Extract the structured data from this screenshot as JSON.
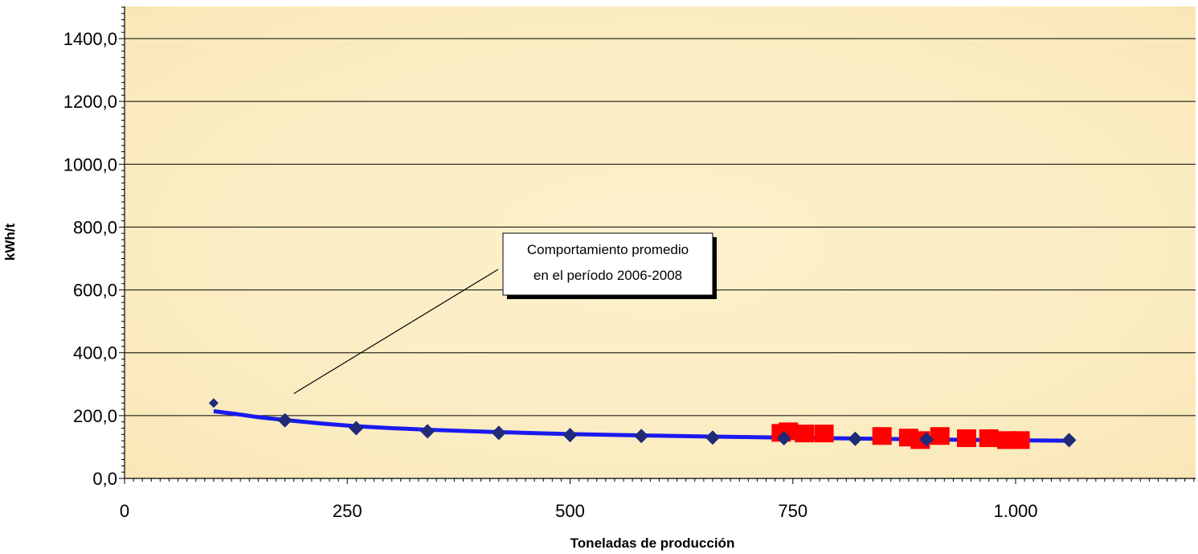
{
  "chart_data": {
    "type": "scatter",
    "title": "",
    "xlabel": "Toneladas de producción",
    "ylabel": "kWh/t",
    "xlim": [
      0,
      1200
    ],
    "ylim": [
      0,
      1500
    ],
    "x_ticks": [
      {
        "value": 0,
        "label": "0"
      },
      {
        "value": 250,
        "label": "250"
      },
      {
        "value": 500,
        "label": "500"
      },
      {
        "value": 750,
        "label": "750"
      },
      {
        "value": 1000,
        "label": "1.000"
      }
    ],
    "y_ticks": [
      {
        "value": 0,
        "label": "0,0"
      },
      {
        "value": 200,
        "label": "200,0"
      },
      {
        "value": 400,
        "label": "400,0"
      },
      {
        "value": 600,
        "label": "600,0"
      },
      {
        "value": 800,
        "label": "800,0"
      },
      {
        "value": 1000,
        "label": "1000,0"
      },
      {
        "value": 1200,
        "label": "1200,0"
      },
      {
        "value": 1400,
        "label": "1400,0"
      }
    ],
    "grid": true,
    "legend": "none",
    "series": [
      {
        "marker": "diamond",
        "color": "#1f2a78",
        "points": [
          {
            "x": 100,
            "y": 240
          },
          {
            "x": 180,
            "y": 185
          },
          {
            "x": 260,
            "y": 160
          },
          {
            "x": 340,
            "y": 150
          },
          {
            "x": 420,
            "y": 145
          },
          {
            "x": 500,
            "y": 138
          },
          {
            "x": 580,
            "y": 135
          },
          {
            "x": 660,
            "y": 130
          },
          {
            "x": 740,
            "y": 128
          },
          {
            "x": 820,
            "y": 126
          },
          {
            "x": 900,
            "y": 124
          },
          {
            "x": 1060,
            "y": 122
          }
        ]
      },
      {
        "marker": "square",
        "color": "#ff0000",
        "points": [
          {
            "x": 737,
            "y": 145
          },
          {
            "x": 745,
            "y": 150
          },
          {
            "x": 763,
            "y": 143
          },
          {
            "x": 785,
            "y": 143
          },
          {
            "x": 850,
            "y": 135
          },
          {
            "x": 880,
            "y": 130
          },
          {
            "x": 893,
            "y": 122
          },
          {
            "x": 915,
            "y": 135
          },
          {
            "x": 945,
            "y": 128
          },
          {
            "x": 970,
            "y": 128
          },
          {
            "x": 990,
            "y": 122
          },
          {
            "x": 1005,
            "y": 122
          }
        ]
      },
      {
        "type": "line",
        "marker": "none",
        "color": "#1a1aee",
        "points": [
          {
            "x": 100,
            "y": 214
          },
          {
            "x": 125,
            "y": 205
          },
          {
            "x": 150,
            "y": 195
          },
          {
            "x": 180,
            "y": 186
          },
          {
            "x": 220,
            "y": 175
          },
          {
            "x": 260,
            "y": 166
          },
          {
            "x": 300,
            "y": 160
          },
          {
            "x": 340,
            "y": 155
          },
          {
            "x": 400,
            "y": 149
          },
          {
            "x": 450,
            "y": 145
          },
          {
            "x": 500,
            "y": 141
          },
          {
            "x": 580,
            "y": 137
          },
          {
            "x": 660,
            "y": 133
          },
          {
            "x": 740,
            "y": 130
          },
          {
            "x": 820,
            "y": 127
          },
          {
            "x": 900,
            "y": 124
          },
          {
            "x": 980,
            "y": 122
          },
          {
            "x": 1060,
            "y": 120
          }
        ]
      }
    ],
    "annotation": {
      "lines": [
        "Comportamiento promedio",
        "en el período 2006-2008"
      ],
      "target": {
        "x": 190,
        "y": 270
      }
    }
  },
  "colors": {
    "plot_background": "#fdf0c8",
    "gridline": "#000000",
    "axis": "#000000"
  }
}
